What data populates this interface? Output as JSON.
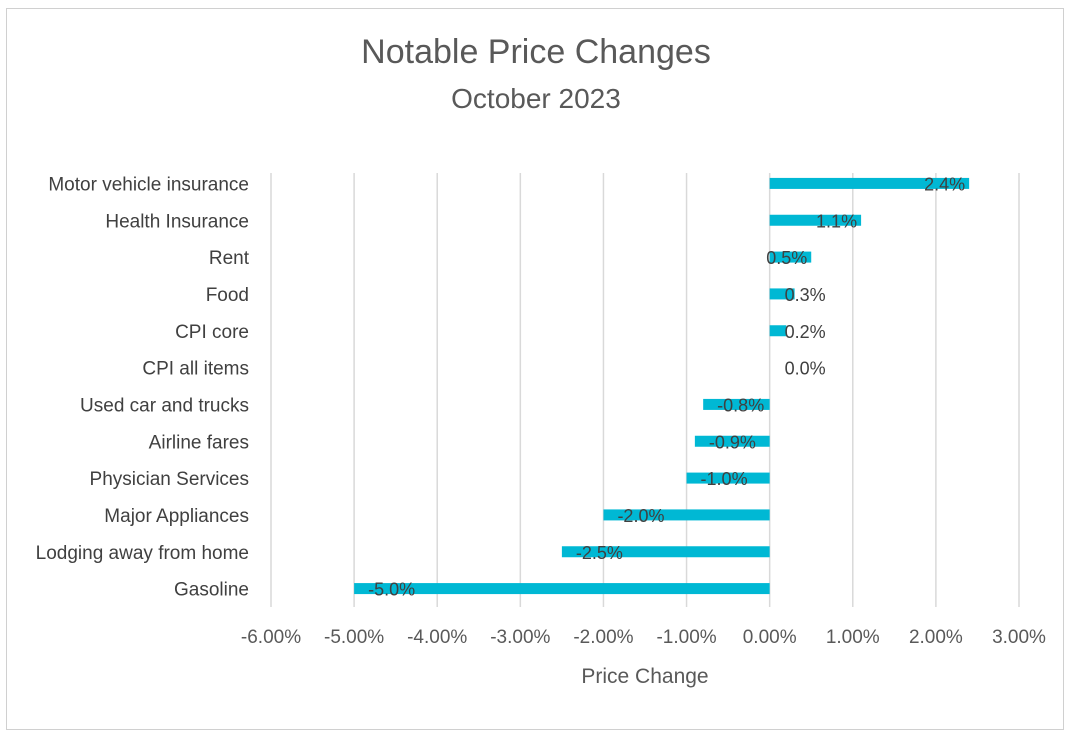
{
  "chart_data": {
    "type": "bar",
    "orientation": "horizontal",
    "title": "Notable Price Changes",
    "subtitle": "October 2023",
    "xlabel": "Price Change",
    "ylabel": "",
    "xlim": [
      -0.06,
      0.03
    ],
    "x_ticks": [
      -0.06,
      -0.05,
      -0.04,
      -0.03,
      -0.02,
      -0.01,
      0.0,
      0.01,
      0.02,
      0.03
    ],
    "x_tick_labels": [
      "-6.00%",
      "-5.00%",
      "-4.00%",
      "-3.00%",
      "-2.00%",
      "-1.00%",
      "0.00%",
      "1.00%",
      "2.00%",
      "3.00%"
    ],
    "grid": true,
    "legend": "none",
    "bar_color": "#00B8D4",
    "categories": [
      "Motor vehicle insurance",
      "Health Insurance",
      "Rent",
      "Food",
      "CPI core",
      "CPI all items",
      "Used car and trucks",
      "Airline fares",
      "Physician Services",
      "Major Appliances",
      "Lodging away from home",
      "Gasoline"
    ],
    "values": [
      0.024,
      0.011,
      0.005,
      0.003,
      0.002,
      0.0,
      -0.008,
      -0.009,
      -0.01,
      -0.02,
      -0.025,
      -0.05
    ],
    "data_labels": [
      "2.4%",
      "1.1%",
      "0.5%",
      "0.3%",
      "0.2%",
      "0.0%",
      "-0.8%",
      "-0.9%",
      "-1.0%",
      "-2.0%",
      "-2.5%",
      "-5.0%"
    ]
  }
}
